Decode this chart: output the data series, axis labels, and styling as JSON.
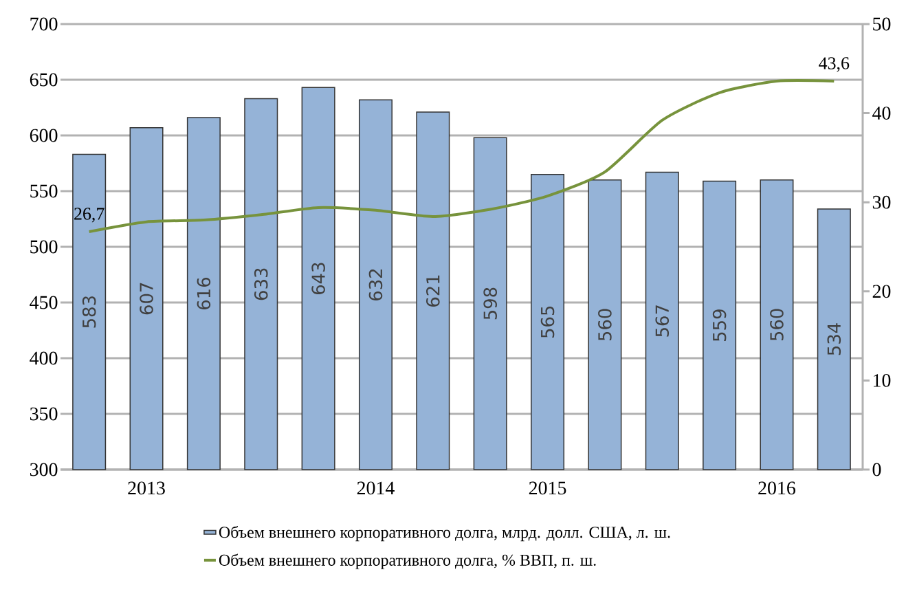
{
  "chart_data": {
    "type": "bar",
    "categories": [
      null,
      "2013",
      null,
      null,
      null,
      "2014",
      null,
      null,
      "2015",
      null,
      null,
      null,
      "2016",
      null
    ],
    "series": [
      {
        "name": "Объем внешнего корпоративного долга, млрд. долл. США, л. ш.",
        "color": "#95b3d7",
        "values": [
          583,
          607,
          616,
          633,
          643,
          632,
          621,
          598,
          565,
          560,
          567,
          559,
          560,
          534
        ],
        "value_labels": [
          "583",
          "607",
          "616",
          "633",
          "643",
          "632",
          "621",
          "598",
          "565",
          "560",
          "567",
          "559",
          "560",
          "534"
        ]
      },
      {
        "name": "Объем внешнего корпоративного долга, % ВВП, п. ш.",
        "type": "line",
        "axis": "y2",
        "color": "#77933c",
        "values": [
          26.7,
          27.8,
          28.0,
          28.6,
          29.4,
          29.1,
          28.4,
          29.2,
          30.7,
          33.4,
          39.2,
          42.3,
          43.6,
          43.6
        ],
        "value_labels": [
          "26,7",
          null,
          null,
          null,
          null,
          null,
          null,
          null,
          null,
          null,
          null,
          null,
          null,
          "43,6"
        ]
      }
    ],
    "ylim": [
      300,
      700
    ],
    "yticks": [
      300,
      350,
      400,
      450,
      500,
      550,
      600,
      650,
      700
    ],
    "y2lim": [
      0,
      50
    ],
    "y2ticks": [
      0,
      10,
      20,
      30,
      40,
      50
    ],
    "grid": "y",
    "legend": "bottom"
  }
}
